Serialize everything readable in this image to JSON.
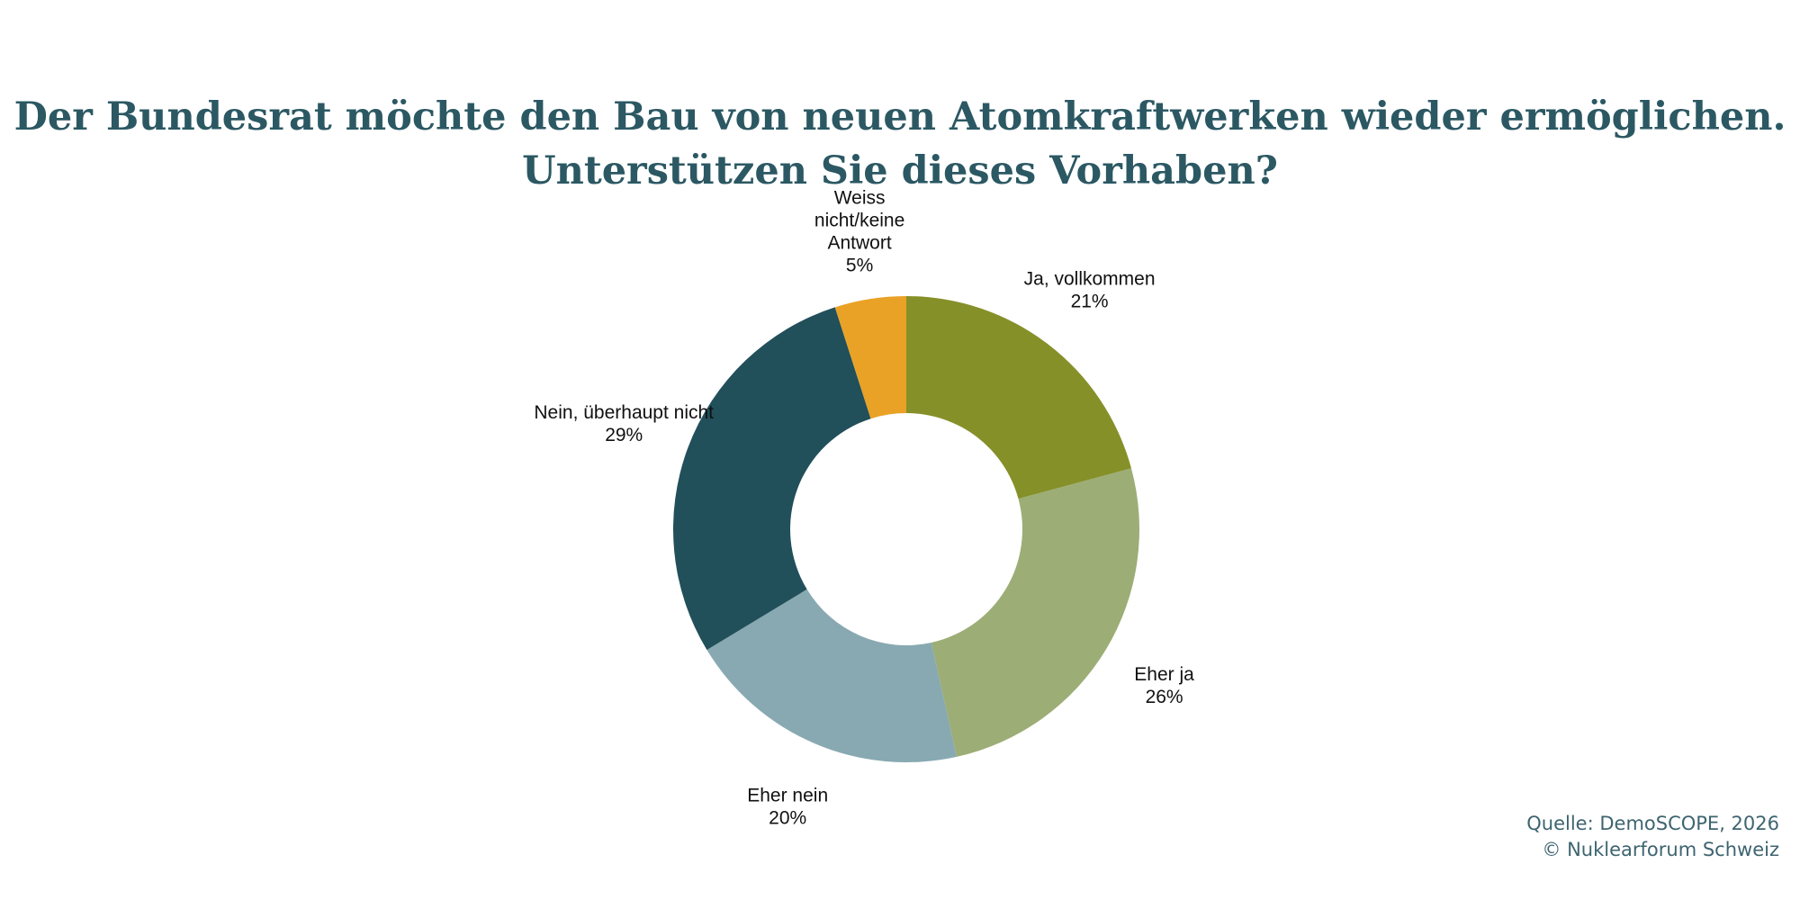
{
  "chart_data": {
    "type": "pie",
    "donut": true,
    "title": "Der Bundesrat möchte den Bau von neuen Atomkraftwerken wieder ermöglichen. Unterstützen Sie dieses Vorhaben?",
    "title_lines": [
      "Der Bundesrat möchte den Bau von neuen Atomkraftwerken wieder ermöglichen.",
      "Unterstützen Sie dieses Vorhaben?"
    ],
    "slices": [
      {
        "label": "Ja, vollkommen",
        "label_lines": [
          "Ja, vollkommen"
        ],
        "value": 21,
        "display": "21%",
        "color": "#869029"
      },
      {
        "label": "Eher ja",
        "label_lines": [
          "Eher ja"
        ],
        "value": 26,
        "display": "26%",
        "color": "#9cad76"
      },
      {
        "label": "Eher nein",
        "label_lines": [
          "Eher nein"
        ],
        "value": 20,
        "display": "20%",
        "color": "#88a9b1"
      },
      {
        "label": "Nein, überhaupt nicht",
        "label_lines": [
          "Nein, überhaupt nicht"
        ],
        "value": 29,
        "display": "29%",
        "color": "#214f5a"
      },
      {
        "label": "Weiss nicht/keine Antwort",
        "label_lines": [
          "Weiss",
          "nicht/keine",
          "Antwort"
        ],
        "value": 5,
        "display": "5%",
        "color": "#e9a226"
      }
    ]
  },
  "footer": {
    "source": "Quelle: DemoSCOPE, 2026",
    "copyright": "© Nuklearforum Schweiz"
  }
}
